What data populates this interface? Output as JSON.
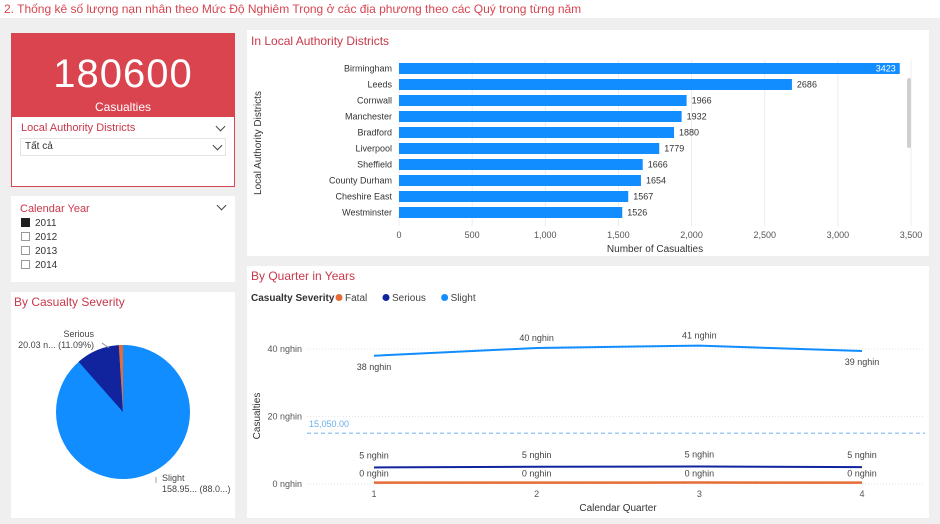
{
  "page": {
    "title": "2. Thống kê số lượng nạn nhân theo Mức Độ Nghiêm Trọng ở các địa phương theo các Quý trong từng năm"
  },
  "kpi": {
    "value": "180600",
    "label": "Casualties"
  },
  "district_slicer": {
    "title": "Local Authority Districts",
    "selected": "Tất cả"
  },
  "year_slicer": {
    "title": "Calendar Year",
    "options": [
      {
        "label": "2011",
        "checked": true
      },
      {
        "label": "2012",
        "checked": false
      },
      {
        "label": "2013",
        "checked": false
      },
      {
        "label": "2014",
        "checked": false
      }
    ]
  },
  "pie": {
    "title": "By Casualty Severity",
    "serious_label": "Serious",
    "serious_value": "20.03 n... (11.09%)",
    "slight_label": "Slight",
    "slight_value": "158.95... (88.0...)"
  },
  "colors": {
    "accent": "#d64550",
    "kpi_bg": "#d9444f",
    "slight": "#118dff",
    "serious": "#12239e",
    "fatal": "#e66c37"
  },
  "chart_data": [
    {
      "type": "bar",
      "title": "In Local Authority Districts",
      "ylabel": "Local Authority Districts",
      "xlabel": "Number of Casualties",
      "categories": [
        "Birmingham",
        "Leeds",
        "Cornwall",
        "Manchester",
        "Bradford",
        "Liverpool",
        "Sheffield",
        "County Durham",
        "Cheshire East",
        "Westminster"
      ],
      "values": [
        3423,
        2686,
        1966,
        1932,
        1880,
        1779,
        1666,
        1654,
        1567,
        1526
      ],
      "xlim": [
        0,
        3500
      ],
      "ticks": [
        "0",
        "500",
        "1,000",
        "1,500",
        "2,000",
        "2,500",
        "3,000",
        "3,500"
      ]
    },
    {
      "type": "line",
      "title": "By Quarter in Years",
      "legend_title": "Casualty Severity",
      "xlabel": "Calendar Quarter",
      "ylabel": "Casualties",
      "x": [
        1,
        2,
        3,
        4
      ],
      "ylim": [
        0,
        45000
      ],
      "y_ticks": [
        {
          "value": 0,
          "label": "0 nghin"
        },
        {
          "value": 20000,
          "label": "20 nghin"
        },
        {
          "value": 40000,
          "label": "40 nghin"
        }
      ],
      "reference_line": {
        "value": 15050,
        "label": "15,050.00"
      },
      "series": [
        {
          "name": "Fatal",
          "values": [
            420,
            400,
            430,
            410
          ],
          "labels": [
            "0 nghin",
            "0 nghin",
            "0 nghin",
            "0 nghin"
          ]
        },
        {
          "name": "Serious",
          "values": [
            4900,
            5100,
            5200,
            5000
          ],
          "labels": [
            "5 nghin",
            "5 nghin",
            "5 nghin",
            "5 nghin"
          ]
        },
        {
          "name": "Slight",
          "values": [
            38000,
            40300,
            41000,
            39400
          ],
          "labels": [
            "38 nghin",
            "40 nghin",
            "41 nghin",
            "39 nghin"
          ]
        }
      ]
    }
  ]
}
